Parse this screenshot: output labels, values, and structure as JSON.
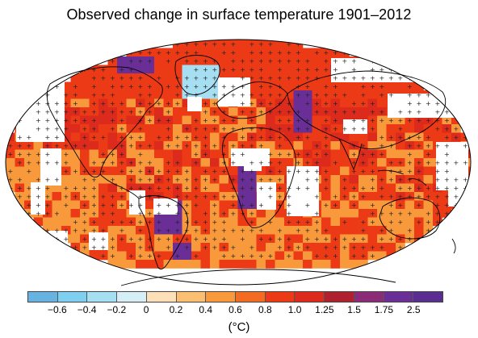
{
  "title": "Observed change in surface temperature 1901–2012",
  "colorbar": {
    "unit": "(°C)",
    "tick_labels": [
      "−0.6",
      "−0.4",
      "−0.2",
      "0",
      "0.2",
      "0.4",
      "0.6",
      "0.8",
      "1.0",
      "1.25",
      "1.5",
      "1.75",
      "2.5"
    ],
    "bins": [
      {
        "color": "#66b3e1"
      },
      {
        "color": "#7fd0f0"
      },
      {
        "color": "#a6dff2"
      },
      {
        "color": "#d6eef6"
      },
      {
        "color": "#fde0b8"
      },
      {
        "color": "#fbbf72"
      },
      {
        "color": "#f89a3c"
      },
      {
        "color": "#f36c23"
      },
      {
        "color": "#ec3a16"
      },
      {
        "color": "#dc2a1c"
      },
      {
        "color": "#b02130"
      },
      {
        "color": "#8a2c78"
      },
      {
        "color": "#6a2f96"
      },
      {
        "color": "#5b2d90"
      }
    ]
  },
  "map": {
    "projection": "Robinson",
    "missing_data_color": "#ffffff",
    "significance_marker": "+",
    "coastline_color": "#000000",
    "gridcell_colors": {
      "arctic": "#ec3a16",
      "north_atlantic_cool": "#a6dff2",
      "hot_purple": "#6a2f96",
      "warm_orange": "#f89a3c",
      "deep_red": "#dc2a1c"
    }
  }
}
